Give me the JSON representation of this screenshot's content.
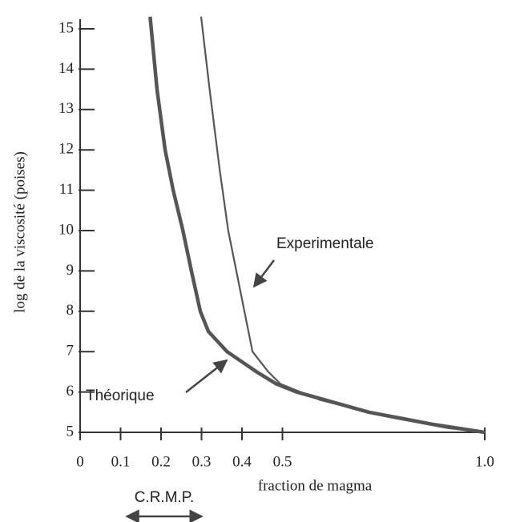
{
  "chart_data": {
    "type": "line",
    "x_label": "fraction de magma",
    "y_label": "log de la viscosité (poises)",
    "xlim": [
      0,
      1.0
    ],
    "ylim": [
      5,
      15
    ],
    "xticks": [
      0,
      0.1,
      0.2,
      0.3,
      0.4,
      0.5,
      {
        "value": 1,
        "label": "1.0"
      }
    ],
    "yticks": [
      5,
      6,
      7,
      8,
      9,
      10,
      11,
      12,
      13,
      14,
      15
    ],
    "series": [
      {
        "name": "Théorique",
        "color": "#555555",
        "x": [
          0.173,
          0.19,
          0.21,
          0.23,
          0.254,
          0.275,
          0.297,
          0.317,
          0.363,
          0.436,
          0.485,
          0.535,
          0.713,
          0.871,
          1.0
        ],
        "values": [
          15.3,
          13.5,
          12,
          11,
          10,
          9,
          8,
          7.5,
          7,
          6.5,
          6.2,
          6,
          5.5,
          5.2,
          5.0
        ]
      },
      {
        "name": "Experimentale",
        "color": "#555555",
        "x": [
          0.299,
          0.32,
          0.345,
          0.366,
          0.386,
          0.406,
          0.426,
          0.465,
          0.495,
          0.594,
          0.752,
          0.911,
          1.0
        ],
        "values": [
          15.3,
          13.5,
          11.5,
          10,
          9,
          8,
          7,
          6.5,
          6.2,
          5.8,
          5.4,
          5.1,
          5.0
        ]
      }
    ],
    "annotations": [
      "C.R.M.P."
    ]
  }
}
